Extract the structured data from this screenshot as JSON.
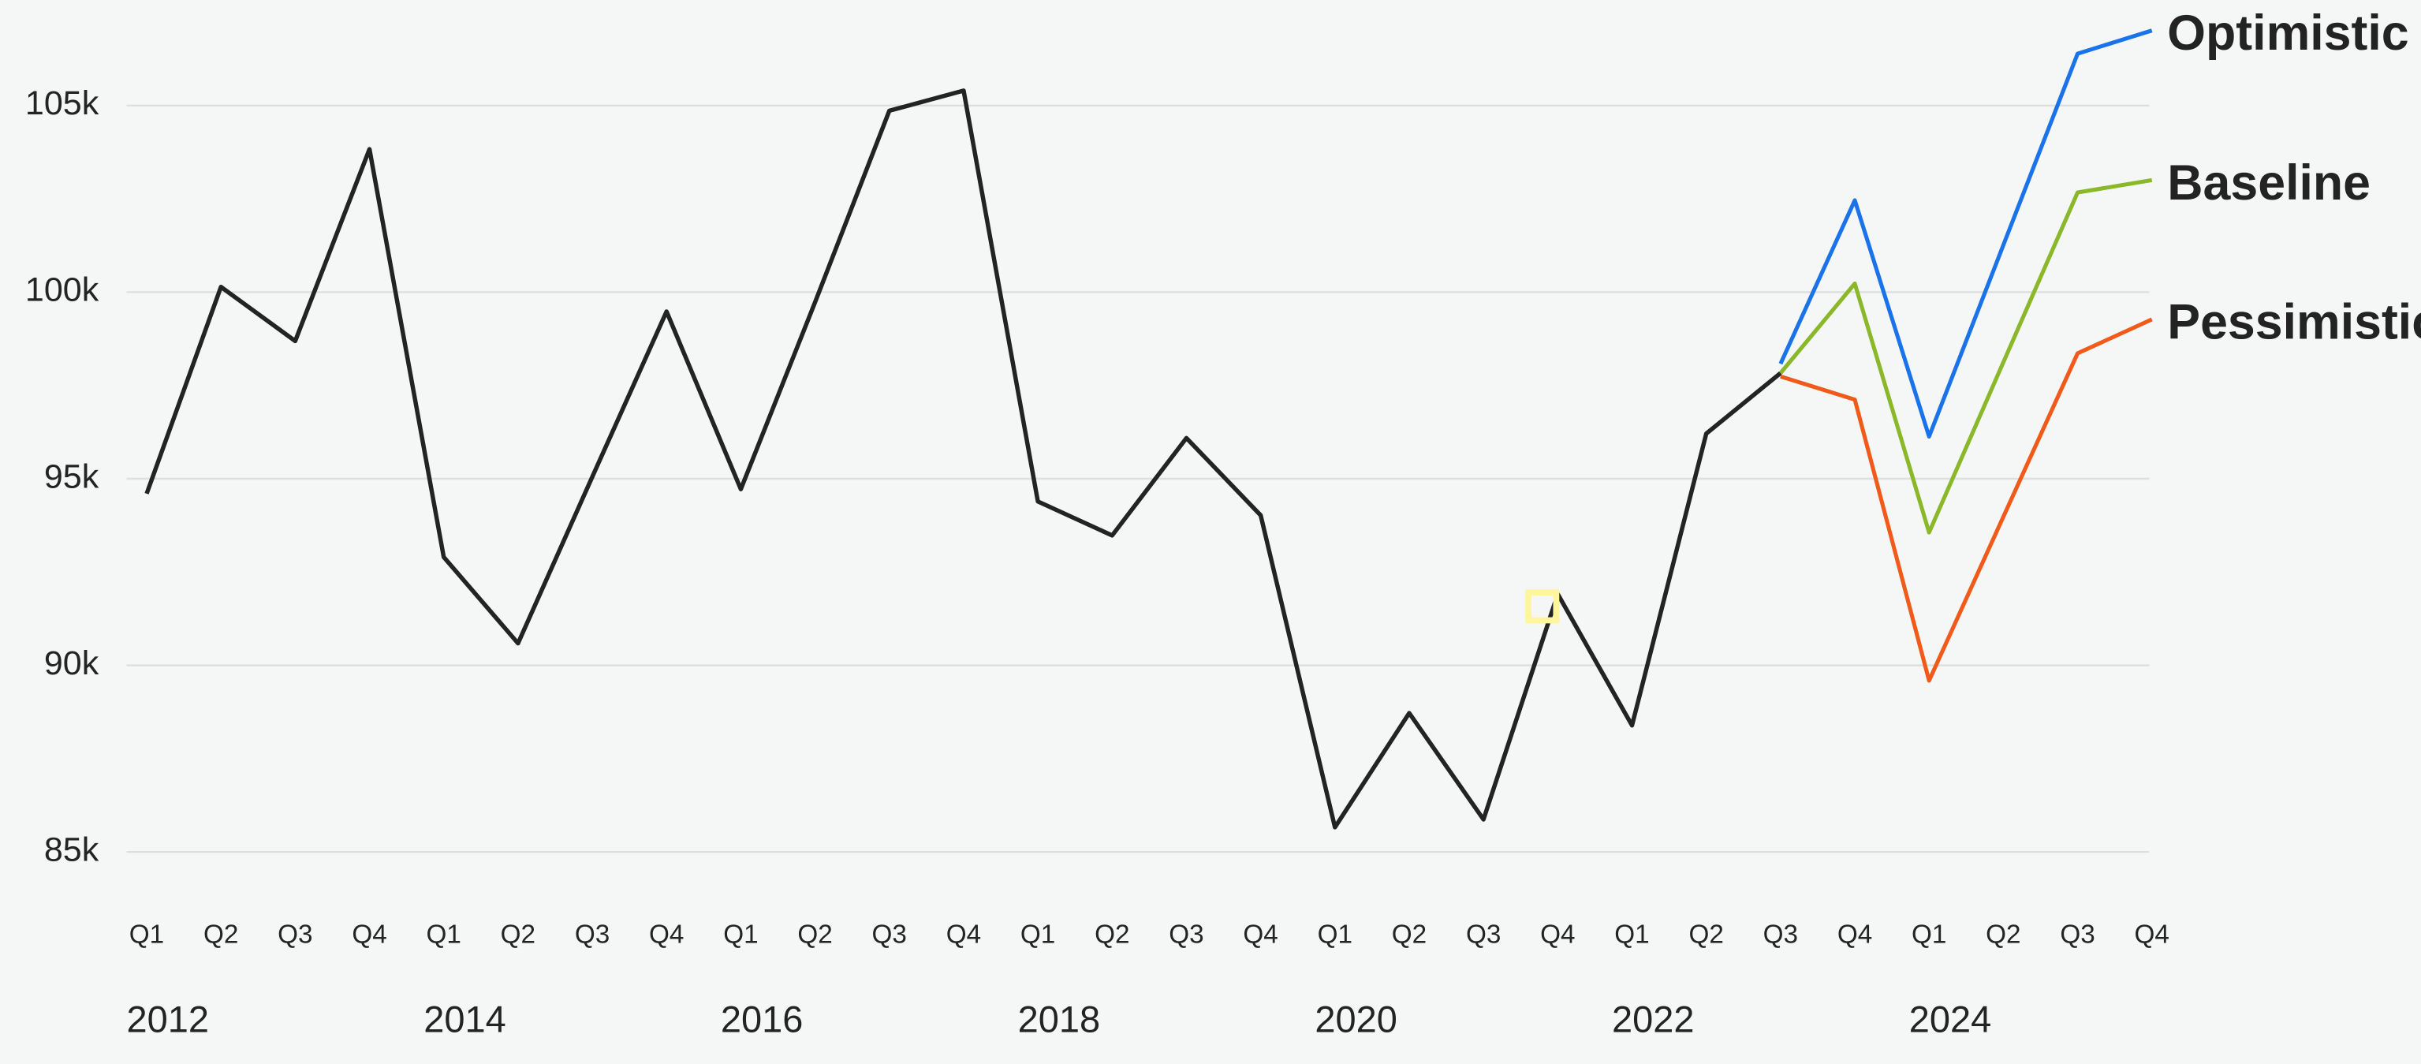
{
  "chart_data": {
    "type": "line",
    "categories": [
      "Q1",
      "Q2",
      "Q3",
      "Q4",
      "Q1",
      "Q2",
      "Q3",
      "Q4",
      "Q1",
      "Q2",
      "Q3",
      "Q4",
      "Q1",
      "Q2",
      "Q3",
      "Q4",
      "Q1",
      "Q2",
      "Q3",
      "Q4",
      "Q1",
      "Q2",
      "Q3",
      "Q4",
      "Q1",
      "Q2",
      "Q3",
      "Q4"
    ],
    "year_labels": [
      "2012",
      "2014",
      "2016",
      "2018",
      "2020",
      "2022",
      "2024"
    ],
    "series": [
      {
        "color": "#232323",
        "values": [
          94600,
          100140,
          98690,
          103830,
          92900,
          90590,
          95050,
          99480,
          94720,
          99730,
          104860,
          105400,
          94390,
          93480,
          96090,
          94020,
          85660,
          88720,
          85870,
          91910,
          88390,
          96210,
          97830,
          null,
          null,
          null,
          null,
          null
        ]
      },
      {
        "name": "Optimistic",
        "color": "#1a73e8",
        "values": [
          null,
          null,
          null,
          null,
          null,
          null,
          null,
          null,
          null,
          null,
          null,
          null,
          null,
          null,
          null,
          null,
          null,
          null,
          null,
          null,
          null,
          null,
          98080,
          102460,
          96130,
          101260,
          106390,
          107010
        ]
      },
      {
        "name": "Baseline",
        "color": "#8ab82a",
        "values": [
          null,
          null,
          null,
          null,
          null,
          null,
          null,
          null,
          null,
          null,
          null,
          null,
          null,
          null,
          null,
          null,
          null,
          null,
          null,
          null,
          null,
          null,
          97830,
          100230,
          93560,
          98120,
          102670,
          103000
        ]
      },
      {
        "name": "Pessimistic",
        "color": "#f05a1a",
        "values": [
          null,
          null,
          null,
          null,
          null,
          null,
          null,
          null,
          null,
          null,
          null,
          null,
          null,
          null,
          null,
          null,
          null,
          null,
          null,
          null,
          null,
          null,
          97740,
          97120,
          89590,
          93980,
          98360,
          99270
        ]
      }
    ],
    "ylim": [
      83000,
      107000
    ],
    "yticks": [
      {
        "value": 85000,
        "label": "85k"
      },
      {
        "value": 90000,
        "label": "90k"
      },
      {
        "value": 95000,
        "label": "95k"
      },
      {
        "value": 100000,
        "label": "100k"
      },
      {
        "value": 105000,
        "label": "105k"
      }
    ],
    "grid": true,
    "highlight_index": 19,
    "highlight_color": "#fff59d"
  }
}
